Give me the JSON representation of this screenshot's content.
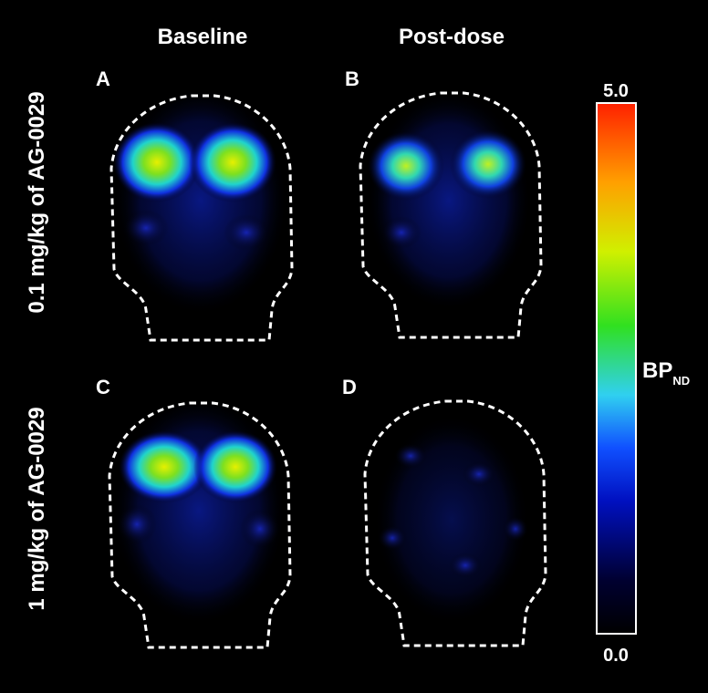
{
  "columns": [
    "Baseline",
    "Post-dose"
  ],
  "rows": [
    "0.1 mg/kg of AG-0029",
    "1 mg/kg of AG-0029"
  ],
  "panels": [
    "A",
    "B",
    "C",
    "D"
  ],
  "colorbar": {
    "max_label": "5.0",
    "min_label": "0.0",
    "label": "BP",
    "label_subscript": "ND"
  }
}
